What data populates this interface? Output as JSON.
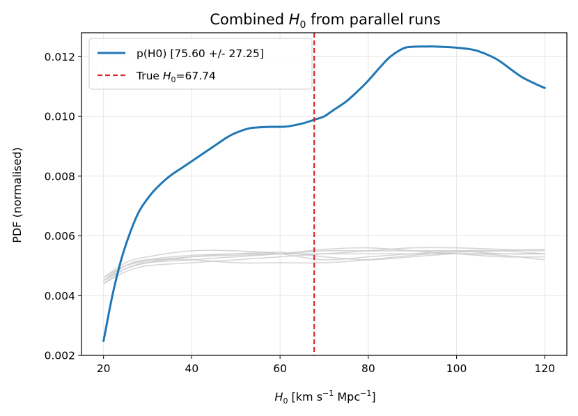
{
  "chart_data": {
    "type": "line",
    "title_prefix": "Combined ",
    "title_var": "H",
    "title_sub": "0",
    "title_suffix": " from parallel runs",
    "xlabel_var": "H",
    "xlabel_sub": "0",
    "xlabel_units_a": " [km s",
    "xlabel_sup1": "−1",
    "xlabel_units_b": " Mpc",
    "xlabel_sup2": "−1",
    "xlabel_units_c": "]",
    "ylabel": "PDF (normalised)",
    "xlim": [
      15,
      125
    ],
    "ylim": [
      0.002,
      0.0128
    ],
    "xticks": [
      20,
      40,
      60,
      80,
      100,
      120
    ],
    "xtick_labels": [
      "20",
      "40",
      "60",
      "80",
      "100",
      "120"
    ],
    "yticks": [
      0.002,
      0.004,
      0.006,
      0.008,
      0.01,
      0.012
    ],
    "ytick_labels": [
      "0.002",
      "0.004",
      "0.006",
      "0.008",
      "0.010",
      "0.012"
    ],
    "grid": true,
    "legend_location": "top-left",
    "colors": {
      "combined": "#1f77b4",
      "truth": "#d62728",
      "runs": "#c8c8c8",
      "grid": "#e6e6e6"
    },
    "series": [
      {
        "name": "combined",
        "legend_label": "p(H0) [75.60 +/- 27.25]",
        "x": [
          20,
          22,
          24,
          26,
          28,
          30,
          32,
          35,
          38,
          40,
          42,
          45,
          48,
          50,
          53,
          55,
          58,
          60,
          62,
          65,
          68,
          70,
          72,
          75,
          78,
          80,
          83,
          85,
          88,
          90,
          93,
          95,
          98,
          100,
          103,
          105,
          108,
          110,
          113,
          115,
          118,
          120
        ],
        "y": [
          0.00248,
          0.004,
          0.0052,
          0.0061,
          0.0068,
          0.00725,
          0.0076,
          0.008,
          0.0083,
          0.0085,
          0.0087,
          0.009,
          0.0093,
          0.00945,
          0.0096,
          0.00963,
          0.00965,
          0.00965,
          0.00967,
          0.00976,
          0.0099,
          0.01,
          0.0102,
          0.0105,
          0.0109,
          0.0112,
          0.0117,
          0.012,
          0.01228,
          0.01233,
          0.01234,
          0.01234,
          0.01232,
          0.0123,
          0.01225,
          0.01218,
          0.012,
          0.01183,
          0.0115,
          0.0113,
          0.01108,
          0.01095
        ]
      },
      {
        "name": "run-1",
        "x": [
          20,
          25,
          30,
          40,
          50,
          60,
          70,
          80,
          90,
          100,
          110,
          120
        ],
        "y": [
          0.0046,
          0.005,
          0.00515,
          0.0053,
          0.00535,
          0.0054,
          0.0055,
          0.0055,
          0.0055,
          0.0055,
          0.0054,
          0.0054
        ]
      },
      {
        "name": "run-2",
        "x": [
          20,
          25,
          30,
          40,
          50,
          60,
          70,
          80,
          90,
          100,
          110,
          120
        ],
        "y": [
          0.0045,
          0.0049,
          0.0051,
          0.0053,
          0.0054,
          0.00545,
          0.0053,
          0.0052,
          0.0053,
          0.0054,
          0.00535,
          0.0052
        ]
      },
      {
        "name": "run-3",
        "x": [
          20,
          25,
          30,
          40,
          50,
          60,
          70,
          80,
          90,
          100,
          110,
          120
        ],
        "y": [
          0.0044,
          0.0048,
          0.005,
          0.0051,
          0.0052,
          0.0053,
          0.0054,
          0.0055,
          0.0056,
          0.0056,
          0.00555,
          0.0055
        ]
      },
      {
        "name": "run-4",
        "x": [
          20,
          25,
          30,
          40,
          50,
          60,
          70,
          80,
          90,
          100,
          110,
          120
        ],
        "y": [
          0.0046,
          0.0051,
          0.0053,
          0.0055,
          0.0055,
          0.0054,
          0.0052,
          0.0053,
          0.0054,
          0.0055,
          0.0055,
          0.0054
        ]
      },
      {
        "name": "run-5",
        "x": [
          20,
          25,
          30,
          40,
          50,
          60,
          70,
          80,
          90,
          100,
          110,
          120
        ],
        "y": [
          0.0045,
          0.005,
          0.0052,
          0.0052,
          0.0051,
          0.0051,
          0.0051,
          0.0052,
          0.00535,
          0.00545,
          0.0055,
          0.00555
        ]
      },
      {
        "name": "run-6",
        "x": [
          20,
          25,
          30,
          40,
          50,
          60,
          70,
          80,
          90,
          100,
          110,
          120
        ],
        "y": [
          0.0044,
          0.0049,
          0.0051,
          0.0052,
          0.0053,
          0.0054,
          0.00555,
          0.0056,
          0.0055,
          0.0054,
          0.0053,
          0.0053
        ]
      },
      {
        "name": "run-7",
        "x": [
          20,
          25,
          30,
          40,
          50,
          60,
          70,
          80,
          90,
          100,
          110,
          120
        ],
        "y": [
          0.0045,
          0.005,
          0.0052,
          0.00535,
          0.0054,
          0.0054,
          0.0054,
          0.0054,
          0.0054,
          0.0054,
          0.0054,
          0.0054
        ]
      }
    ],
    "truth_line": {
      "x": 67.74,
      "legend_prefix": "True ",
      "legend_var": "H",
      "legend_sub": "0",
      "legend_value": "=67.74"
    }
  }
}
